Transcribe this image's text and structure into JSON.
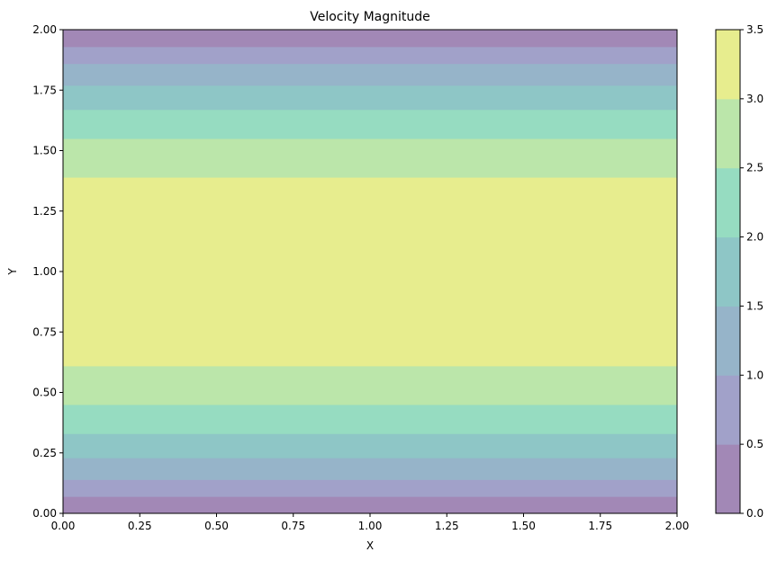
{
  "chart_data": {
    "type": "heatmap",
    "title": "Velocity Magnitude",
    "xlabel": "X",
    "ylabel": "Y",
    "xlim": [
      0,
      2
    ],
    "ylim": [
      0,
      2
    ],
    "x_ticks": [
      "0.00",
      "0.25",
      "0.50",
      "0.75",
      "1.00",
      "1.25",
      "1.50",
      "1.75",
      "2.00"
    ],
    "y_ticks": [
      "0.00",
      "0.25",
      "0.50",
      "0.75",
      "1.00",
      "1.25",
      "1.50",
      "1.75",
      "2.00"
    ],
    "x_tick_values": [
      0,
      0.25,
      0.5,
      0.75,
      1.0,
      1.25,
      1.5,
      1.75,
      2.0
    ],
    "y_tick_values": [
      0,
      0.25,
      0.5,
      0.75,
      1.0,
      1.25,
      1.5,
      1.75,
      2.0
    ],
    "colorbar": {
      "levels": [
        0.0,
        0.5,
        1.0,
        1.5,
        2.0,
        2.5,
        3.0,
        3.5
      ],
      "tick_labels": [
        "0.0",
        "0.5",
        "1.0",
        "1.5",
        "2.0",
        "2.5",
        "3.0",
        "3.5"
      ],
      "colors": [
        "#a288b6",
        "#a1a1c9",
        "#96b4c9",
        "#8ec6c6",
        "#96dcc1",
        "#bbe6aa",
        "#e7ed8e"
      ]
    },
    "bands": [
      {
        "y0": 0.0,
        "y1": 0.07,
        "level": 0
      },
      {
        "y0": 0.07,
        "y1": 0.14,
        "level": 1
      },
      {
        "y0": 0.14,
        "y1": 0.23,
        "level": 2
      },
      {
        "y0": 0.23,
        "y1": 0.33,
        "level": 3
      },
      {
        "y0": 0.33,
        "y1": 0.45,
        "level": 4
      },
      {
        "y0": 0.45,
        "y1": 0.61,
        "level": 5
      },
      {
        "y0": 0.61,
        "y1": 1.39,
        "level": 6
      },
      {
        "y0": 1.39,
        "y1": 1.55,
        "level": 5
      },
      {
        "y0": 1.55,
        "y1": 1.67,
        "level": 4
      },
      {
        "y0": 1.67,
        "y1": 1.77,
        "level": 3
      },
      {
        "y0": 1.77,
        "y1": 1.86,
        "level": 2
      },
      {
        "y0": 1.86,
        "y1": 1.93,
        "level": 1
      },
      {
        "y0": 1.93,
        "y1": 2.0,
        "level": 0
      }
    ]
  }
}
